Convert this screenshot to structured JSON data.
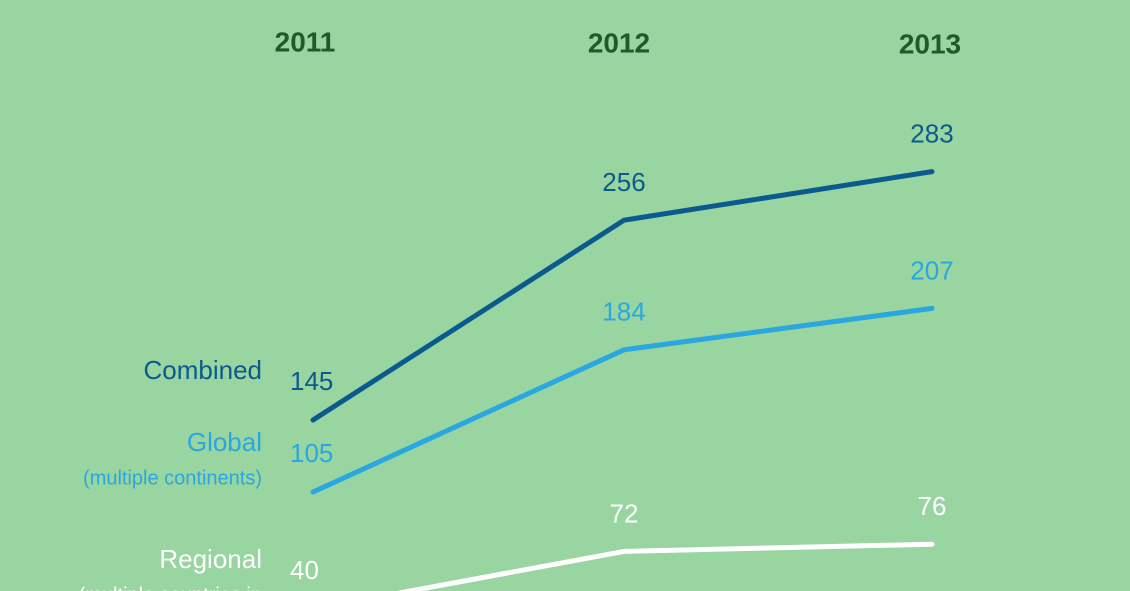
{
  "chart_data": {
    "type": "line",
    "categories": [
      "2011",
      "2012",
      "2013"
    ],
    "series": [
      {
        "name": "Combined",
        "color": "#0b5a8e",
        "values": [
          145,
          256,
          283
        ]
      },
      {
        "name": "Global",
        "description": "(multiple continents)",
        "color": "#2aa7e0",
        "values": [
          105,
          184,
          207
        ]
      },
      {
        "name": "Regional",
        "description": "(multiple countries in",
        "color": "#ffffff",
        "values": [
          40,
          72,
          76
        ]
      }
    ]
  }
}
